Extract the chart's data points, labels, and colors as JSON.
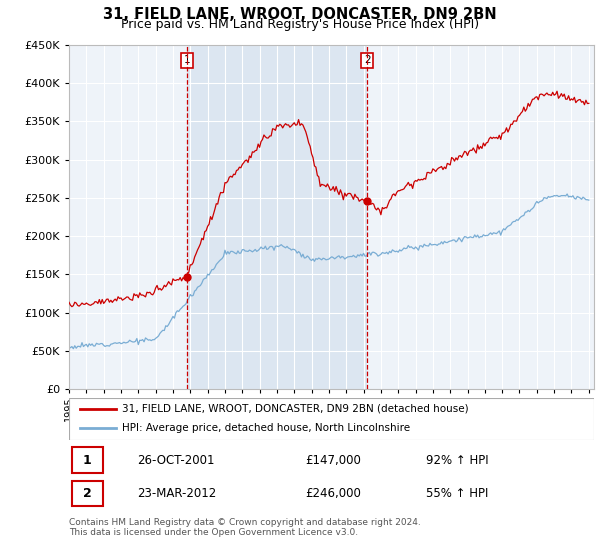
{
  "title": "31, FIELD LANE, WROOT, DONCASTER, DN9 2BN",
  "subtitle": "Price paid vs. HM Land Registry's House Price Index (HPI)",
  "ylim": [
    0,
    450000
  ],
  "yticks": [
    0,
    50000,
    100000,
    150000,
    200000,
    250000,
    300000,
    350000,
    400000,
    450000
  ],
  "sale1_year": 2001.82,
  "sale1_price": 147000,
  "sale2_year": 2012.22,
  "sale2_price": 246000,
  "legend_line1": "31, FIELD LANE, WROOT, DONCASTER, DN9 2BN (detached house)",
  "legend_line2": "HPI: Average price, detached house, North Lincolnshire",
  "table_row1_num": "1",
  "table_row1_date": "26-OCT-2001",
  "table_row1_price": "£147,000",
  "table_row1_hpi": "92% ↑ HPI",
  "table_row2_num": "2",
  "table_row2_date": "23-MAR-2012",
  "table_row2_price": "£246,000",
  "table_row2_hpi": "55% ↑ HPI",
  "footer": "Contains HM Land Registry data © Crown copyright and database right 2024.\nThis data is licensed under the Open Government Licence v3.0.",
  "red_color": "#cc0000",
  "blue_color": "#7aadd4",
  "shade_color": "#dce6f1",
  "bg_color": "#eef3f9",
  "grid_color": "#ffffff",
  "title_fontsize": 10.5,
  "subtitle_fontsize": 9
}
